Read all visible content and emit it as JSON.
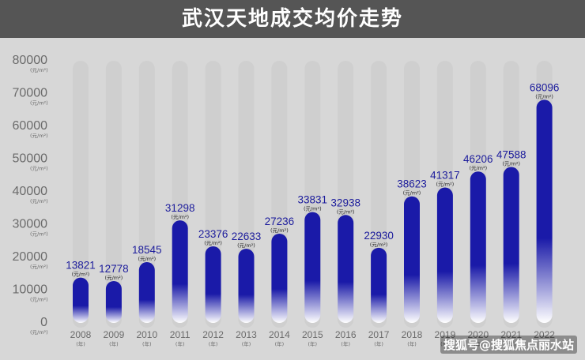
{
  "title": "武汉天地成交均价走势",
  "watermark": "搜狐号@搜狐焦点丽水站",
  "colors": {
    "bar_top": "#1a1aa8",
    "bar_bottom": "#ffffff",
    "track": "#cfcfcf",
    "value_text": "#1c1c9c",
    "tick_text": "#6b6b6b",
    "title_bg": "#555555"
  },
  "chart_data": {
    "type": "bar",
    "title": "武汉天地成交均价走势",
    "categories": [
      "2008",
      "2009",
      "2010",
      "2011",
      "2012",
      "2013",
      "2014",
      "2015",
      "2016",
      "2017",
      "2018",
      "2019",
      "2020",
      "2021",
      "2022"
    ],
    "category_unit": "(年)",
    "values": [
      13821,
      12778,
      18545,
      31298,
      23376,
      22633,
      27236,
      33831,
      32938,
      22930,
      38623,
      41317,
      46206,
      47588,
      68096
    ],
    "value_unit": "(元/m²)",
    "ylim": [
      0,
      80000
    ],
    "yticks": [
      0,
      10000,
      20000,
      30000,
      40000,
      50000,
      60000,
      70000,
      80000
    ],
    "ytick_unit": "(元/m²)",
    "xlabel": "",
    "ylabel": "",
    "grid": false,
    "legend": "none"
  }
}
